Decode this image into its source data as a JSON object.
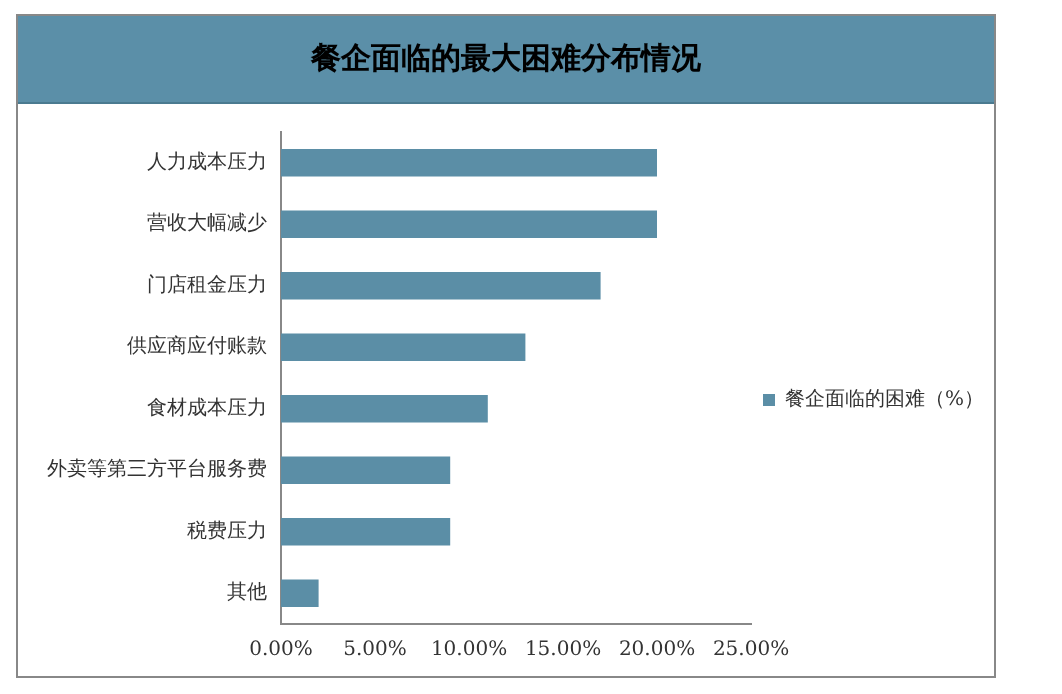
{
  "chart_data": {
    "type": "bar",
    "title": "餐企面临的最大困难分布情况",
    "orientation": "horizontal",
    "categories": [
      "人力成本压力",
      "营收大幅减少",
      "门店租金压力",
      "供应商应付账款",
      "食材成本压力",
      "外卖等第三方平台服务费",
      "税费压力",
      "其他"
    ],
    "series": [
      {
        "name": "餐企面临的困难（%）",
        "color": "#5b8ea6",
        "values": [
          20,
          20,
          17,
          13,
          11,
          9,
          9,
          2
        ]
      }
    ],
    "xlim": [
      0,
      25
    ],
    "xticks": [
      {
        "value": 0,
        "label": "0.00%"
      },
      {
        "value": 5,
        "label": "5.00%"
      },
      {
        "value": 10,
        "label": "10.00%"
      },
      {
        "value": 15,
        "label": "15.00%"
      },
      {
        "value": 20,
        "label": "20.00%"
      },
      {
        "value": 25,
        "label": "25.00%"
      }
    ],
    "grid": false,
    "legend": "right"
  }
}
